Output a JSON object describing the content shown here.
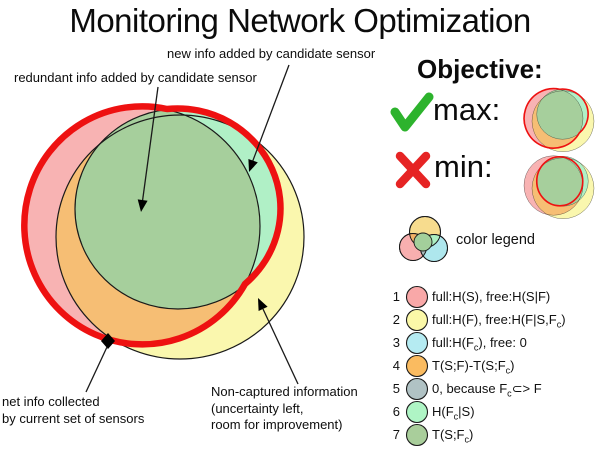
{
  "title": "Monitoring Network Optimization",
  "diagram": {
    "labels": {
      "new_info": "new info added by candidate sensor",
      "redundant": "redundant info added by candidate sensor",
      "net_info": "net info collected\nby current set of sensors",
      "non_captured": "Non-captured information\n(uncertainty left,\nroom for improvement)"
    }
  },
  "objective": {
    "heading": "Objective:",
    "max_label": "max:",
    "min_label": "min:"
  },
  "legend": {
    "title": "color legend",
    "rows": [
      {
        "num": "1",
        "color": "#F9A8A8",
        "parts": [
          {
            "t": "full:H(S), free:H(S|F)"
          }
        ]
      },
      {
        "num": "2",
        "color": "#FBF8A8",
        "parts": [
          {
            "t": "full:H(F), free:H(F|S,F"
          },
          {
            "s": "c"
          },
          {
            "t": ")"
          }
        ]
      },
      {
        "num": "3",
        "color": "#B5EBF2",
        "parts": [
          {
            "t": "full:H(F"
          },
          {
            "s": "c"
          },
          {
            "t": "), free: 0"
          }
        ]
      },
      {
        "num": "4",
        "color": "#FABB60",
        "parts": [
          {
            "t": "T(S;F)-T(S;F"
          },
          {
            "s": "c"
          },
          {
            "t": ")"
          }
        ]
      },
      {
        "num": "5",
        "color": "#B0C2C4",
        "parts": [
          {
            "t": "0, because F"
          },
          {
            "s": "c"
          },
          {
            "t": "⊂> F"
          }
        ]
      },
      {
        "num": "6",
        "color": "#AFF5C5",
        "parts": [
          {
            "t": "H(F"
          },
          {
            "s": "c"
          },
          {
            "t": "|S)"
          }
        ]
      },
      {
        "num": "7",
        "color": "#A9CE9B",
        "parts": [
          {
            "t": "T(S;F"
          },
          {
            "s": "c"
          },
          {
            "t": ")"
          }
        ]
      }
    ]
  },
  "colors": {
    "s_pink": "#F8B3B3",
    "f_yellow": "#FAF7AE",
    "fc_mint": "#B0F0C6",
    "overlap_orange": "#F6BE74",
    "overlap_green": "#A6CF9C",
    "red_outline": "#EE1111",
    "stroke": "#1A1A1A",
    "check_green": "#2DB32D",
    "x_red": "#E62424",
    "cl_yellow": "#F7DC8E",
    "cl_pink": "#F8AFAF",
    "cl_cyan": "#AEE7ED",
    "cl_orange": "#F2B165",
    "cl_mint": "#ACEFC2",
    "cl_gray": "#A9BABD",
    "cl_green": "#A3CF9B"
  }
}
